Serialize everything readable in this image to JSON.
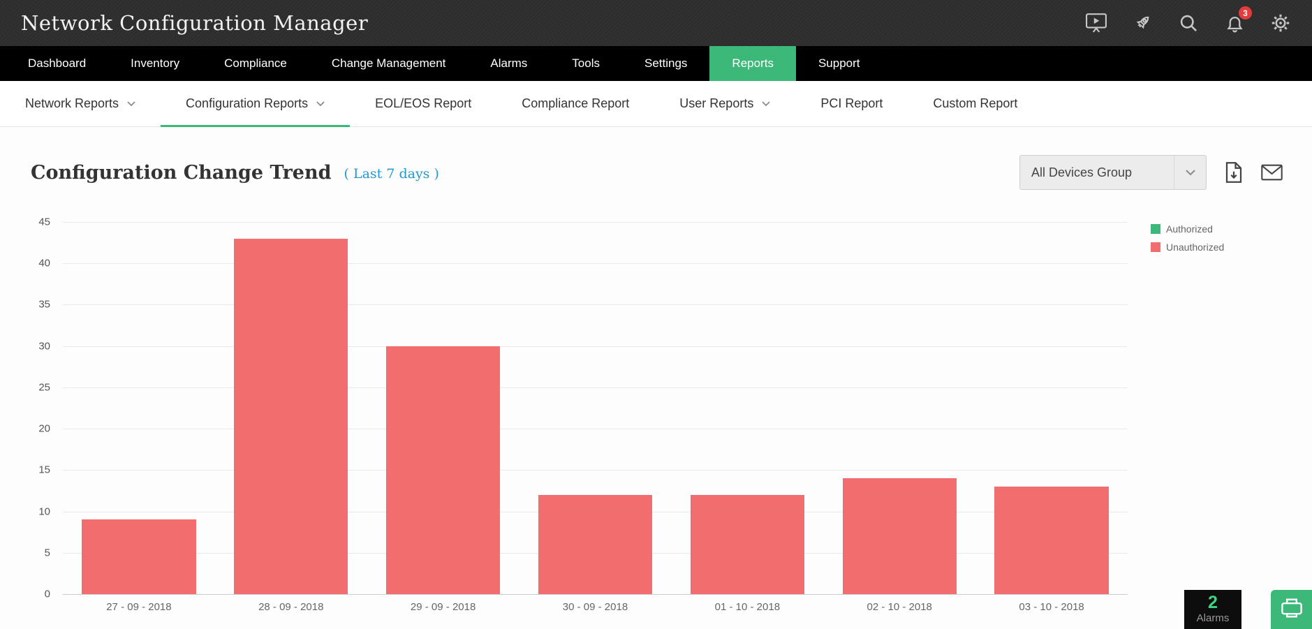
{
  "app": {
    "title": "Network Configuration Manager"
  },
  "topbar": {
    "badge_count": "3",
    "icons": [
      "presentation-icon",
      "rocket-icon",
      "search-icon",
      "bell-icon",
      "gear-icon"
    ]
  },
  "main_nav": {
    "items": [
      {
        "label": "Dashboard",
        "active": false
      },
      {
        "label": "Inventory",
        "active": false
      },
      {
        "label": "Compliance",
        "active": false
      },
      {
        "label": "Change Management",
        "active": false
      },
      {
        "label": "Alarms",
        "active": false
      },
      {
        "label": "Tools",
        "active": false
      },
      {
        "label": "Settings",
        "active": false
      },
      {
        "label": "Reports",
        "active": true
      },
      {
        "label": "Support",
        "active": false
      }
    ]
  },
  "sub_nav": {
    "items": [
      {
        "label": "Network Reports",
        "chevron": true,
        "active": false
      },
      {
        "label": "Configuration Reports",
        "chevron": true,
        "active": true
      },
      {
        "label": "EOL/EOS Report",
        "chevron": false,
        "active": false
      },
      {
        "label": "Compliance Report",
        "chevron": false,
        "active": false
      },
      {
        "label": "User Reports",
        "chevron": true,
        "active": false
      },
      {
        "label": "PCI Report",
        "chevron": false,
        "active": false
      },
      {
        "label": "Custom Report",
        "chevron": false,
        "active": false
      }
    ]
  },
  "report": {
    "title": "Configuration Change Trend",
    "period": "( Last 7 days )",
    "group_selector": "All Devices Group"
  },
  "chart_data": {
    "type": "bar",
    "title": "Configuration Change Trend",
    "categories": [
      "27 - 09 - 2018",
      "28 - 09 - 2018",
      "29 - 09 - 2018",
      "30 - 09 - 2018",
      "01 - 10 - 2018",
      "02 - 10 - 2018",
      "03 - 10 - 2018"
    ],
    "series": [
      {
        "name": "Authorized",
        "color": "#3cb878",
        "values": [
          0,
          0,
          0,
          0,
          0,
          0,
          0
        ]
      },
      {
        "name": "Unauthorized",
        "color": "#f26d6d",
        "values": [
          9,
          43,
          30,
          12,
          12,
          14,
          13
        ]
      }
    ],
    "xlabel": "",
    "ylabel": "",
    "ylim": [
      0,
      45
    ],
    "ytick_step": 5,
    "grid": true,
    "legend_position": "top-right"
  },
  "widgets": {
    "alarms_count": "2",
    "alarms_label": "Alarms"
  },
  "colors": {
    "accent_green": "#3cb878",
    "bar_red": "#f26d6d",
    "link_blue": "#1e9ad2",
    "badge_red": "#e23c3c"
  }
}
